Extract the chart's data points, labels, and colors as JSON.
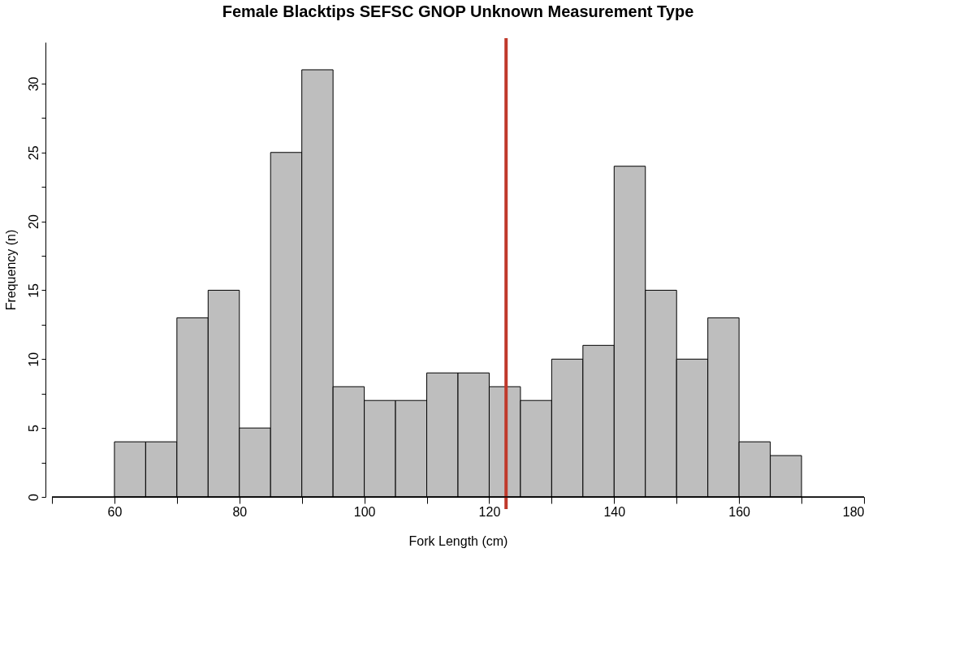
{
  "chart_data": {
    "type": "histogram",
    "title": "Female Blacktips SEFSC GNOP Unknown Measurement Type",
    "xlabel": "Fork Length (cm)",
    "ylabel": "Frequency (n)",
    "bins": [
      60,
      65,
      70,
      75,
      80,
      85,
      90,
      95,
      100,
      105,
      110,
      115,
      120,
      125,
      130,
      135,
      140,
      145,
      150,
      155,
      160,
      165,
      170
    ],
    "values": [
      4,
      4,
      13,
      15,
      5,
      25,
      31,
      8,
      7,
      7,
      9,
      9,
      8,
      7,
      10,
      11,
      24,
      15,
      10,
      13,
      4,
      3
    ],
    "color": "#bebebe",
    "xlim": [
      50,
      180
    ],
    "xticks": [
      {
        "value": 50,
        "label": null
      },
      60,
      {
        "value": 70,
        "label": null
      },
      80,
      {
        "value": 90,
        "label": null
      },
      100,
      {
        "value": 110,
        "label": null
      },
      120,
      {
        "value": 130,
        "label": null
      },
      140,
      {
        "value": 150,
        "label": null
      },
      160,
      {
        "value": 170,
        "label": null
      },
      180
    ],
    "ylim": [
      0,
      33
    ],
    "yticks": [
      0,
      {
        "value": 2.5,
        "label": null
      },
      5,
      {
        "value": 7.5,
        "label": null
      },
      10,
      {
        "value": 12.5,
        "label": null
      },
      15,
      {
        "value": 17.5,
        "label": null
      },
      20,
      {
        "value": 22.5,
        "label": null
      },
      25,
      {
        "value": 27.5,
        "label": null
      },
      30
    ],
    "ref_lines": [
      {
        "axis": "x",
        "value": 122.7,
        "label": null,
        "color": "#c0392b"
      },
      {
        "axis": "y",
        "value": 0,
        "label": null,
        "color": "#000000"
      }
    ],
    "grid": false
  }
}
